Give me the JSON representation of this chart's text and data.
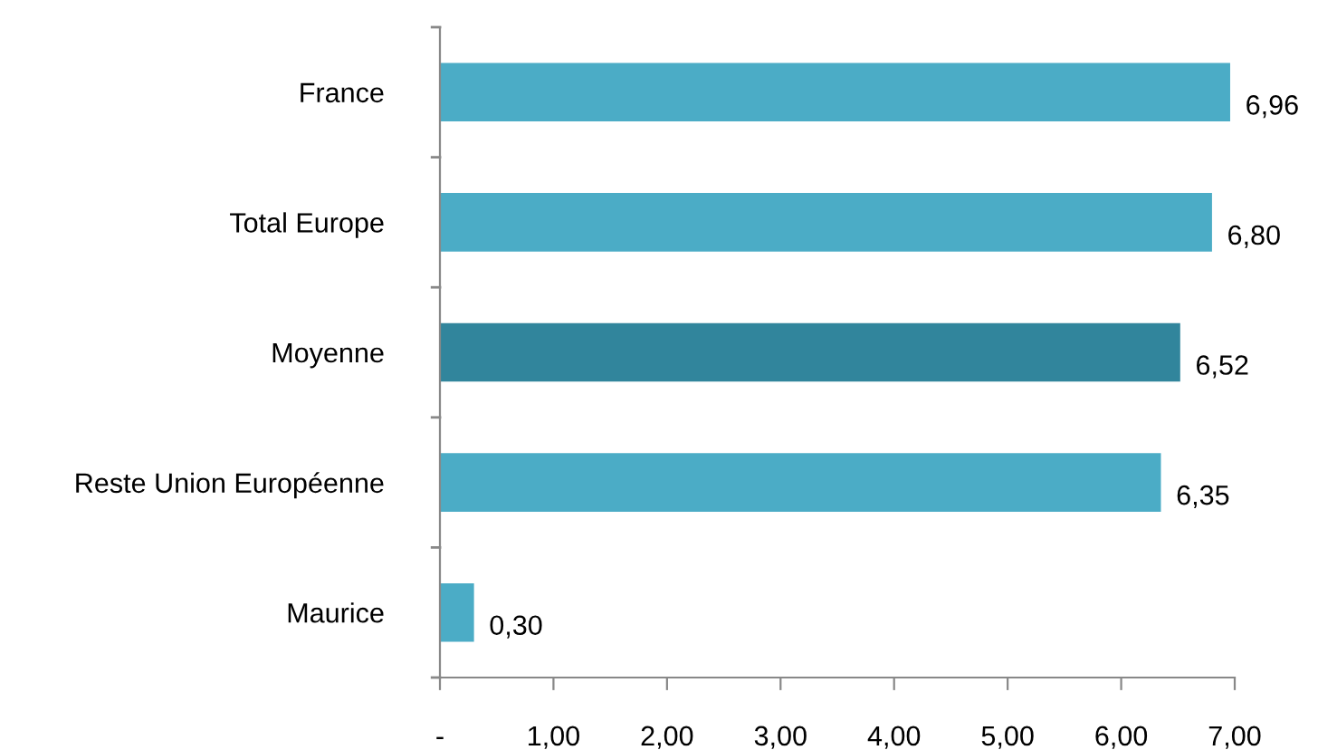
{
  "chart_data": {
    "type": "bar",
    "orientation": "horizontal",
    "categories": [
      "France",
      "Total Europe",
      "Moyenne",
      "Reste Union Européenne",
      "Maurice"
    ],
    "values": [
      6.96,
      6.8,
      6.52,
      6.35,
      0.3
    ],
    "colors": [
      "#4bacc6",
      "#4bacc6",
      "#31859c",
      "#4bacc6",
      "#4bacc6"
    ],
    "value_labels": [
      "6,96",
      "6,80",
      "6,52",
      "6,35",
      "0,30"
    ],
    "xlim": [
      0,
      7
    ],
    "xticks": [
      {
        "value": 0,
        "label": "-"
      },
      {
        "value": 1,
        "label": "1,00"
      },
      {
        "value": 2,
        "label": "2,00"
      },
      {
        "value": 3,
        "label": "3,00"
      },
      {
        "value": 4,
        "label": "4,00"
      },
      {
        "value": 5,
        "label": "5,00"
      },
      {
        "value": 6,
        "label": "6,00"
      },
      {
        "value": 7,
        "label": "7,00"
      }
    ],
    "grid": false
  }
}
